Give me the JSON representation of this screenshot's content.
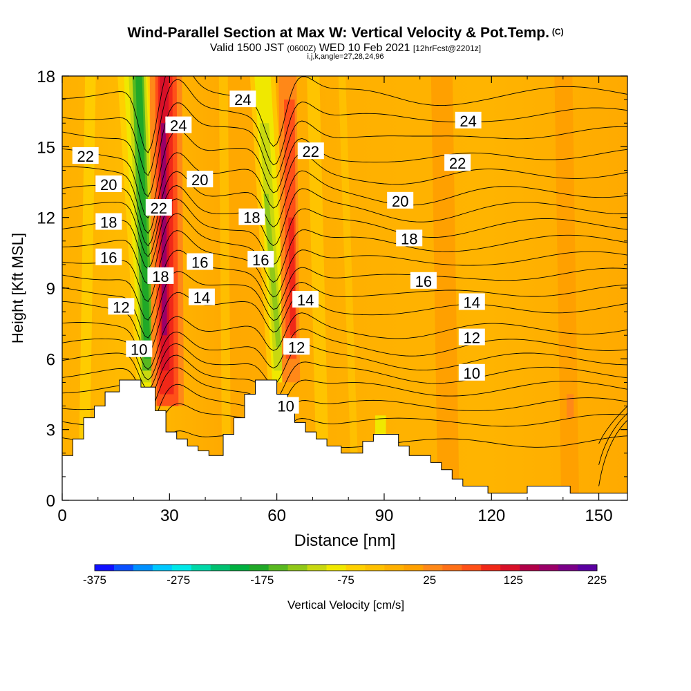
{
  "header": {
    "title": "Wind-Parallel Section at Max W: Vertical Velocity & Pot.Temp.",
    "title_mark": "(C)",
    "valid_prefix": "Valid 1500 JST",
    "valid_utc": "(0600Z)",
    "valid_day": "WED 10 Feb 2021",
    "forecast": "[12hrFcst@2201z]",
    "indices": "i,j,k,angle=27,28,24,96"
  },
  "chart_data": {
    "type": "heatmap",
    "xlabel": "Distance [nm]",
    "ylabel": "Height [Kft MSL]",
    "xlim": [
      0,
      158
    ],
    "ylim": [
      0,
      18
    ],
    "x_ticks": [
      0,
      30,
      60,
      90,
      120,
      150
    ],
    "y_ticks": [
      0,
      3,
      6,
      9,
      12,
      15,
      18
    ],
    "colorbar": {
      "label": "Vertical Velocity [cm/s]",
      "range": [
        -375,
        225
      ],
      "tick_labels": [
        -375,
        -275,
        -175,
        -75,
        25,
        125,
        225
      ],
      "colors": [
        "#1010ff",
        "#0a50ff",
        "#0090ff",
        "#00c8ff",
        "#00e8e8",
        "#00d8a8",
        "#00c070",
        "#00b040",
        "#20a828",
        "#58b820",
        "#90c818",
        "#c8d810",
        "#f0e800",
        "#ffd000",
        "#ffc000",
        "#ffb000",
        "#ffa000",
        "#ff8818",
        "#ff7018",
        "#ff5018",
        "#f02818",
        "#d81028",
        "#b00048",
        "#9a0068",
        "#7a0088",
        "#5a00a0"
      ]
    },
    "theta_contours": {
      "levels": [
        10,
        12,
        14,
        16,
        18,
        20,
        22,
        24
      ],
      "labels": [
        {
          "text": "24",
          "x": 50.5,
          "y": 17.0
        },
        {
          "text": "24",
          "x": 32.5,
          "y": 15.9
        },
        {
          "text": "24",
          "x": 113.5,
          "y": 16.1
        },
        {
          "text": "22",
          "x": 6.5,
          "y": 14.6
        },
        {
          "text": "22",
          "x": 69.5,
          "y": 14.8
        },
        {
          "text": "22",
          "x": 110.5,
          "y": 14.3
        },
        {
          "text": "22",
          "x": 27.0,
          "y": 12.4
        },
        {
          "text": "20",
          "x": 13.0,
          "y": 13.4
        },
        {
          "text": "20",
          "x": 38.5,
          "y": 13.6
        },
        {
          "text": "20",
          "x": 94.5,
          "y": 12.7
        },
        {
          "text": "18",
          "x": 13.0,
          "y": 11.8
        },
        {
          "text": "18",
          "x": 53.0,
          "y": 12.0
        },
        {
          "text": "18",
          "x": 97.0,
          "y": 11.1
        },
        {
          "text": "18",
          "x": 27.5,
          "y": 9.5
        },
        {
          "text": "16",
          "x": 13.0,
          "y": 10.3
        },
        {
          "text": "16",
          "x": 55.5,
          "y": 10.2
        },
        {
          "text": "16",
          "x": 38.5,
          "y": 10.1
        },
        {
          "text": "16",
          "x": 101.0,
          "y": 9.3
        },
        {
          "text": "14",
          "x": 39.0,
          "y": 8.6
        },
        {
          "text": "14",
          "x": 68.0,
          "y": 8.5
        },
        {
          "text": "14",
          "x": 114.5,
          "y": 8.4
        },
        {
          "text": "12",
          "x": 16.5,
          "y": 8.2
        },
        {
          "text": "12",
          "x": 65.5,
          "y": 6.5
        },
        {
          "text": "12",
          "x": 114.5,
          "y": 6.9
        },
        {
          "text": "10",
          "x": 21.5,
          "y": 6.4
        },
        {
          "text": "10",
          "x": 62.5,
          "y": 4.0
        },
        {
          "text": "10",
          "x": 114.5,
          "y": 5.4
        }
      ]
    },
    "terrain": [
      [
        0,
        1.9
      ],
      [
        3,
        1.9
      ],
      [
        3,
        2.6
      ],
      [
        6,
        2.6
      ],
      [
        6,
        3.5
      ],
      [
        9,
        3.5
      ],
      [
        9,
        4.0
      ],
      [
        12,
        4.0
      ],
      [
        12,
        4.6
      ],
      [
        16,
        4.6
      ],
      [
        16,
        5.1
      ],
      [
        22,
        5.1
      ],
      [
        22,
        4.8
      ],
      [
        26,
        4.8
      ],
      [
        26,
        3.8
      ],
      [
        29,
        3.8
      ],
      [
        29,
        2.9
      ],
      [
        32,
        2.9
      ],
      [
        32,
        2.6
      ],
      [
        35,
        2.6
      ],
      [
        35,
        2.3
      ],
      [
        38,
        2.3
      ],
      [
        38,
        2.1
      ],
      [
        41,
        2.1
      ],
      [
        41,
        1.9
      ],
      [
        45,
        1.9
      ],
      [
        45,
        2.8
      ],
      [
        48,
        2.8
      ],
      [
        48,
        3.5
      ],
      [
        51,
        3.5
      ],
      [
        51,
        4.5
      ],
      [
        54,
        4.5
      ],
      [
        54,
        5.1
      ],
      [
        60,
        5.1
      ],
      [
        60,
        4.5
      ],
      [
        63,
        4.5
      ],
      [
        63,
        3.8
      ],
      [
        65,
        3.8
      ],
      [
        65,
        3.3
      ],
      [
        68,
        3.3
      ],
      [
        68,
        2.9
      ],
      [
        71,
        2.9
      ],
      [
        71,
        2.6
      ],
      [
        74,
        2.6
      ],
      [
        74,
        2.3
      ],
      [
        78,
        2.3
      ],
      [
        78,
        2.0
      ],
      [
        84,
        2.0
      ],
      [
        84,
        2.5
      ],
      [
        87,
        2.5
      ],
      [
        87,
        2.8
      ],
      [
        94,
        2.8
      ],
      [
        94,
        2.3
      ],
      [
        97,
        2.3
      ],
      [
        97,
        1.9
      ],
      [
        103,
        1.9
      ],
      [
        103,
        1.6
      ],
      [
        106,
        1.6
      ],
      [
        106,
        1.3
      ],
      [
        109,
        1.3
      ],
      [
        109,
        0.9
      ],
      [
        112,
        0.9
      ],
      [
        112,
        0.6
      ],
      [
        119,
        0.6
      ],
      [
        119,
        0.3
      ],
      [
        130,
        0.3
      ],
      [
        130,
        0.6
      ],
      [
        142,
        0.6
      ],
      [
        142,
        0.3
      ],
      [
        158,
        0.3
      ],
      [
        158,
        0
      ],
      [
        0,
        0
      ]
    ]
  }
}
